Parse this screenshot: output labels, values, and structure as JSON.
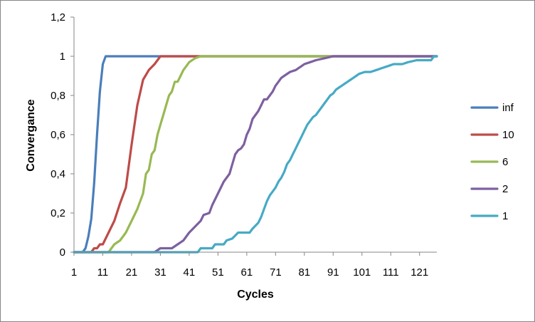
{
  "chart_data": {
    "type": "line",
    "title": "",
    "xlabel": "Cycles",
    "ylabel": "Convergance",
    "xlim": [
      1,
      127
    ],
    "ylim": [
      0,
      1.2
    ],
    "x_ticks": [
      "1",
      "11",
      "21",
      "31",
      "41",
      "51",
      "61",
      "71",
      "81",
      "91",
      "101",
      "111",
      "121"
    ],
    "y_ticks": [
      "0",
      "0,2",
      "0,4",
      "0,6",
      "0,8",
      "1",
      "1,2"
    ],
    "grid": false,
    "legend_position": "right",
    "series": [
      {
        "name": "inf",
        "color": "#4a7ebb",
        "points": [
          [
            1,
            0
          ],
          [
            4,
            0
          ],
          [
            5,
            0.02
          ],
          [
            6,
            0.08
          ],
          [
            7,
            0.17
          ],
          [
            8,
            0.35
          ],
          [
            9,
            0.6
          ],
          [
            10,
            0.82
          ],
          [
            11,
            0.96
          ],
          [
            12,
            1
          ],
          [
            127,
            1
          ]
        ]
      },
      {
        "name": "10",
        "color": "#be4b48",
        "points": [
          [
            1,
            0
          ],
          [
            7,
            0
          ],
          [
            8,
            0.02
          ],
          [
            9,
            0.02
          ],
          [
            10,
            0.04
          ],
          [
            11,
            0.04
          ],
          [
            13,
            0.1
          ],
          [
            15,
            0.16
          ],
          [
            17,
            0.25
          ],
          [
            19,
            0.33
          ],
          [
            21,
            0.55
          ],
          [
            23,
            0.75
          ],
          [
            25,
            0.88
          ],
          [
            27,
            0.93
          ],
          [
            29,
            0.96
          ],
          [
            31,
            1
          ],
          [
            127,
            1
          ]
        ]
      },
      {
        "name": "6",
        "color": "#98b954",
        "points": [
          [
            1,
            0
          ],
          [
            13,
            0
          ],
          [
            15,
            0.04
          ],
          [
            17,
            0.06
          ],
          [
            19,
            0.1
          ],
          [
            21,
            0.16
          ],
          [
            23,
            0.22
          ],
          [
            25,
            0.3
          ],
          [
            26,
            0.4
          ],
          [
            27,
            0.42
          ],
          [
            28,
            0.5
          ],
          [
            29,
            0.52
          ],
          [
            30,
            0.6
          ],
          [
            31,
            0.65
          ],
          [
            32,
            0.7
          ],
          [
            33,
            0.75
          ],
          [
            34,
            0.8
          ],
          [
            35,
            0.82
          ],
          [
            36,
            0.87
          ],
          [
            37,
            0.87
          ],
          [
            38,
            0.9
          ],
          [
            39,
            0.93
          ],
          [
            40,
            0.95
          ],
          [
            41,
            0.97
          ],
          [
            43,
            0.99
          ],
          [
            45,
            1
          ],
          [
            127,
            1
          ]
        ]
      },
      {
        "name": "2",
        "color": "#7d60a0",
        "points": [
          [
            1,
            0
          ],
          [
            29,
            0
          ],
          [
            31,
            0.02
          ],
          [
            35,
            0.02
          ],
          [
            37,
            0.04
          ],
          [
            39,
            0.06
          ],
          [
            41,
            0.1
          ],
          [
            43,
            0.13
          ],
          [
            45,
            0.16
          ],
          [
            46,
            0.19
          ],
          [
            48,
            0.2
          ],
          [
            49,
            0.24
          ],
          [
            51,
            0.3
          ],
          [
            53,
            0.36
          ],
          [
            55,
            0.4
          ],
          [
            56,
            0.45
          ],
          [
            57,
            0.5
          ],
          [
            58,
            0.52
          ],
          [
            59,
            0.53
          ],
          [
            60,
            0.55
          ],
          [
            61,
            0.6
          ],
          [
            62,
            0.63
          ],
          [
            63,
            0.68
          ],
          [
            64,
            0.7
          ],
          [
            65,
            0.72
          ],
          [
            66,
            0.75
          ],
          [
            67,
            0.78
          ],
          [
            68,
            0.78
          ],
          [
            69,
            0.8
          ],
          [
            70,
            0.82
          ],
          [
            71,
            0.85
          ],
          [
            72,
            0.87
          ],
          [
            73,
            0.89
          ],
          [
            74,
            0.9
          ],
          [
            76,
            0.92
          ],
          [
            78,
            0.93
          ],
          [
            80,
            0.95
          ],
          [
            81,
            0.96
          ],
          [
            83,
            0.97
          ],
          [
            85,
            0.98
          ],
          [
            88,
            0.99
          ],
          [
            91,
            1
          ],
          [
            127,
            1
          ]
        ]
      },
      {
        "name": "1",
        "color": "#46aac5",
        "points": [
          [
            1,
            0
          ],
          [
            44,
            0
          ],
          [
            45,
            0.02
          ],
          [
            49,
            0.02
          ],
          [
            50,
            0.04
          ],
          [
            53,
            0.04
          ],
          [
            54,
            0.06
          ],
          [
            56,
            0.07
          ],
          [
            58,
            0.1
          ],
          [
            62,
            0.1
          ],
          [
            63,
            0.12
          ],
          [
            65,
            0.15
          ],
          [
            66,
            0.18
          ],
          [
            67,
            0.22
          ],
          [
            68,
            0.26
          ],
          [
            69,
            0.29
          ],
          [
            70,
            0.31
          ],
          [
            71,
            0.33
          ],
          [
            72,
            0.36
          ],
          [
            73,
            0.38
          ],
          [
            74,
            0.41
          ],
          [
            75,
            0.45
          ],
          [
            76,
            0.47
          ],
          [
            77,
            0.5
          ],
          [
            78,
            0.53
          ],
          [
            79,
            0.56
          ],
          [
            80,
            0.59
          ],
          [
            81,
            0.62
          ],
          [
            82,
            0.65
          ],
          [
            83,
            0.67
          ],
          [
            84,
            0.69
          ],
          [
            85,
            0.7
          ],
          [
            86,
            0.72
          ],
          [
            87,
            0.74
          ],
          [
            88,
            0.76
          ],
          [
            89,
            0.78
          ],
          [
            90,
            0.8
          ],
          [
            91,
            0.81
          ],
          [
            92,
            0.83
          ],
          [
            93,
            0.84
          ],
          [
            94,
            0.85
          ],
          [
            95,
            0.86
          ],
          [
            96,
            0.87
          ],
          [
            97,
            0.88
          ],
          [
            98,
            0.89
          ],
          [
            99,
            0.9
          ],
          [
            100,
            0.91
          ],
          [
            102,
            0.92
          ],
          [
            104,
            0.92
          ],
          [
            106,
            0.93
          ],
          [
            108,
            0.94
          ],
          [
            110,
            0.95
          ],
          [
            112,
            0.96
          ],
          [
            115,
            0.96
          ],
          [
            117,
            0.97
          ],
          [
            120,
            0.98
          ],
          [
            125,
            0.98
          ],
          [
            126,
            1
          ],
          [
            127,
            1
          ]
        ]
      }
    ]
  }
}
